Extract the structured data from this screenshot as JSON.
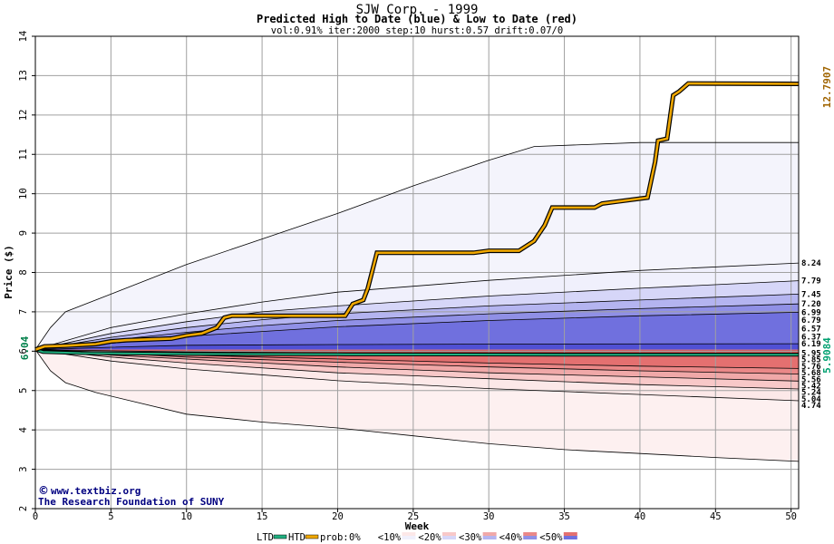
{
  "chart_data": {
    "type": "line",
    "title": "SJW Corp. - 1999",
    "subtitle": "Predicted High to Date (blue) &  Low to Date (red)",
    "params": "vol:0.91% iter:2000 step:10 hurst:0.57 drift:0.07/0",
    "xlabel": "Week",
    "ylabel": "Price ($)",
    "xlim": [
      0,
      50.5
    ],
    "ylim": [
      2,
      14
    ],
    "xticks": [
      0,
      5,
      10,
      15,
      20,
      25,
      30,
      35,
      40,
      45,
      50
    ],
    "yticks": [
      2,
      3,
      4,
      5,
      6,
      7,
      8,
      9,
      10,
      11,
      12,
      13,
      14
    ],
    "grid": true,
    "start_price": 6.04,
    "start_label": "6.04",
    "htd_final": 12.7907,
    "htd_final_label": "12.7907",
    "ltd_final": 5.9084,
    "ltd_final_label": "5.9084",
    "right_labels": [
      "8.24",
      "7.79",
      "7.45",
      "7.20",
      "6.99",
      "6.79",
      "6.57",
      "6.37",
      "6.19",
      "5.95",
      "5.85",
      "5.76",
      "5.68",
      "5.56",
      "5.42",
      "5.24",
      "5.04",
      "4.74"
    ],
    "right_label_values": [
      8.24,
      7.79,
      7.45,
      7.2,
      6.99,
      6.79,
      6.57,
      6.37,
      6.19,
      5.95,
      5.85,
      5.76,
      5.68,
      5.56,
      5.42,
      5.24,
      5.04,
      4.74
    ],
    "envelope_high": [
      [
        0,
        6.04
      ],
      [
        1,
        6.6
      ],
      [
        2,
        7.0
      ],
      [
        5,
        7.45
      ],
      [
        10,
        8.2
      ],
      [
        15,
        8.85
      ],
      [
        20,
        9.5
      ],
      [
        25,
        10.2
      ],
      [
        30,
        10.85
      ],
      [
        33,
        11.2
      ],
      [
        40,
        11.3
      ],
      [
        50.5,
        11.3
      ]
    ],
    "envelope_low": [
      [
        0,
        6.04
      ],
      [
        1,
        5.5
      ],
      [
        2,
        5.2
      ],
      [
        4,
        4.95
      ],
      [
        10,
        4.4
      ],
      [
        15,
        4.2
      ],
      [
        20,
        4.05
      ],
      [
        25,
        3.85
      ],
      [
        30,
        3.65
      ],
      [
        35,
        3.5
      ],
      [
        40,
        3.4
      ],
      [
        45,
        3.3
      ],
      [
        50.5,
        3.2
      ]
    ],
    "high_bands": [
      {
        "prob": "<10%",
        "color": "#f0f0fc",
        "upper": [
          [
            0,
            6.04
          ],
          [
            5,
            6.6
          ],
          [
            10,
            6.95
          ],
          [
            15,
            7.25
          ],
          [
            20,
            7.5
          ],
          [
            30,
            7.8
          ],
          [
            40,
            8.05
          ],
          [
            50.5,
            8.24
          ]
        ]
      },
      {
        "prob": "<20%",
        "color": "#d6d6f8",
        "upper": [
          [
            0,
            6.04
          ],
          [
            5,
            6.45
          ],
          [
            10,
            6.75
          ],
          [
            15,
            7.0
          ],
          [
            20,
            7.15
          ],
          [
            30,
            7.4
          ],
          [
            40,
            7.6
          ],
          [
            50.5,
            7.79
          ]
        ]
      },
      {
        "prob": "<30%",
        "color": "#b4b4f0",
        "upper": [
          [
            0,
            6.04
          ],
          [
            5,
            6.35
          ],
          [
            10,
            6.6
          ],
          [
            15,
            6.8
          ],
          [
            20,
            6.95
          ],
          [
            30,
            7.15
          ],
          [
            40,
            7.3
          ],
          [
            50.5,
            7.45
          ]
        ]
      },
      {
        "prob": "<40%",
        "color": "#9090e6",
        "upper": [
          [
            0,
            6.04
          ],
          [
            5,
            6.28
          ],
          [
            10,
            6.48
          ],
          [
            15,
            6.65
          ],
          [
            20,
            6.78
          ],
          [
            30,
            6.95
          ],
          [
            40,
            7.08
          ],
          [
            50.5,
            7.2
          ]
        ]
      },
      {
        "prob": "<50%",
        "color": "#7070de",
        "upper": [
          [
            0,
            6.04
          ],
          [
            5,
            6.2
          ],
          [
            10,
            6.38
          ],
          [
            15,
            6.5
          ],
          [
            20,
            6.62
          ],
          [
            30,
            6.78
          ],
          [
            40,
            6.9
          ],
          [
            50.5,
            6.99
          ]
        ]
      }
    ],
    "high_inner_upper": [
      [
        0,
        6.04
      ],
      [
        5,
        6.1
      ],
      [
        10,
        6.15
      ],
      [
        20,
        6.17
      ],
      [
        30,
        6.18
      ],
      [
        50.5,
        6.19
      ]
    ],
    "low_bands": [
      {
        "prob": "<10%",
        "color": "#fce8e8",
        "lower": [
          [
            0,
            6.04
          ],
          [
            5,
            5.75
          ],
          [
            10,
            5.55
          ],
          [
            20,
            5.25
          ],
          [
            30,
            5.05
          ],
          [
            40,
            4.9
          ],
          [
            50.5,
            4.74
          ]
        ]
      },
      {
        "prob": "<20%",
        "color": "#f8c8c8",
        "lower": [
          [
            0,
            6.04
          ],
          [
            5,
            5.85
          ],
          [
            10,
            5.7
          ],
          [
            20,
            5.45
          ],
          [
            30,
            5.3
          ],
          [
            40,
            5.15
          ],
          [
            50.5,
            5.04
          ]
        ]
      },
      {
        "prob": "<30%",
        "color": "#f0a8a8",
        "lower": [
          [
            0,
            6.04
          ],
          [
            5,
            5.9
          ],
          [
            10,
            5.8
          ],
          [
            20,
            5.6
          ],
          [
            30,
            5.45
          ],
          [
            40,
            5.35
          ],
          [
            50.5,
            5.24
          ]
        ]
      },
      {
        "prob": "<40%",
        "color": "#ea8888",
        "lower": [
          [
            0,
            6.04
          ],
          [
            5,
            5.95
          ],
          [
            10,
            5.85
          ],
          [
            20,
            5.72
          ],
          [
            30,
            5.6
          ],
          [
            40,
            5.5
          ],
          [
            50.5,
            5.42
          ]
        ]
      },
      {
        "prob": "<50%",
        "color": "#e47070",
        "lower": [
          [
            0,
            6.04
          ],
          [
            5,
            5.97
          ],
          [
            10,
            5.9
          ],
          [
            20,
            5.8
          ],
          [
            30,
            5.7
          ],
          [
            40,
            5.62
          ],
          [
            50.5,
            5.56
          ]
        ]
      }
    ],
    "low_inner_lower": [
      [
        0,
        6.04
      ],
      [
        10,
        5.98
      ],
      [
        20,
        5.96
      ],
      [
        35,
        5.955
      ],
      [
        50.5,
        5.95
      ]
    ],
    "htd_series": [
      [
        0,
        6.04
      ],
      [
        0.6,
        6.12
      ],
      [
        2,
        6.14
      ],
      [
        4,
        6.18
      ],
      [
        5,
        6.25
      ],
      [
        6,
        6.28
      ],
      [
        9,
        6.32
      ],
      [
        10,
        6.4
      ],
      [
        11,
        6.45
      ],
      [
        12,
        6.6
      ],
      [
        12.5,
        6.85
      ],
      [
        13,
        6.9
      ],
      [
        20.5,
        6.9
      ],
      [
        21,
        7.2
      ],
      [
        21.7,
        7.3
      ],
      [
        22,
        7.6
      ],
      [
        22.4,
        8.2
      ],
      [
        22.6,
        8.5
      ],
      [
        29,
        8.5
      ],
      [
        30,
        8.55
      ],
      [
        32,
        8.55
      ],
      [
        33,
        8.8
      ],
      [
        33.7,
        9.2
      ],
      [
        34.2,
        9.65
      ],
      [
        37,
        9.65
      ],
      [
        37.5,
        9.75
      ],
      [
        38.5,
        9.8
      ],
      [
        40.5,
        9.9
      ],
      [
        41,
        10.8
      ],
      [
        41.2,
        11.35
      ],
      [
        41.8,
        11.4
      ],
      [
        42.2,
        12.5
      ],
      [
        42.6,
        12.6
      ],
      [
        43.2,
        12.8
      ],
      [
        50.5,
        12.79
      ]
    ],
    "ltd_series": [
      [
        0,
        6.04
      ],
      [
        0.5,
        5.98
      ],
      [
        3,
        5.95
      ],
      [
        10,
        5.93
      ],
      [
        20,
        5.92
      ],
      [
        35,
        5.91
      ],
      [
        50.5,
        5.908
      ]
    ],
    "legend": {
      "ltd": "LTD",
      "htd": "HTD",
      "prob_prefix": "prob:",
      "items": [
        "0%",
        "<10%",
        "<20%",
        "<30%",
        "<40%",
        "<50%"
      ],
      "ltd_color": "#20b080",
      "htd_color": "#f0a800"
    },
    "colors": {
      "htd_fill": "#f0a800",
      "ltd_line": "#20b080",
      "htd_label": "#a06400",
      "ltd_label": "#00a070",
      "start_label": "#00804a",
      "credit": "#000080",
      "grid": "#a0a0a0"
    }
  },
  "credits": {
    "site": "www.textbiz.org",
    "org": "The Research Foundation of SUNY"
  }
}
